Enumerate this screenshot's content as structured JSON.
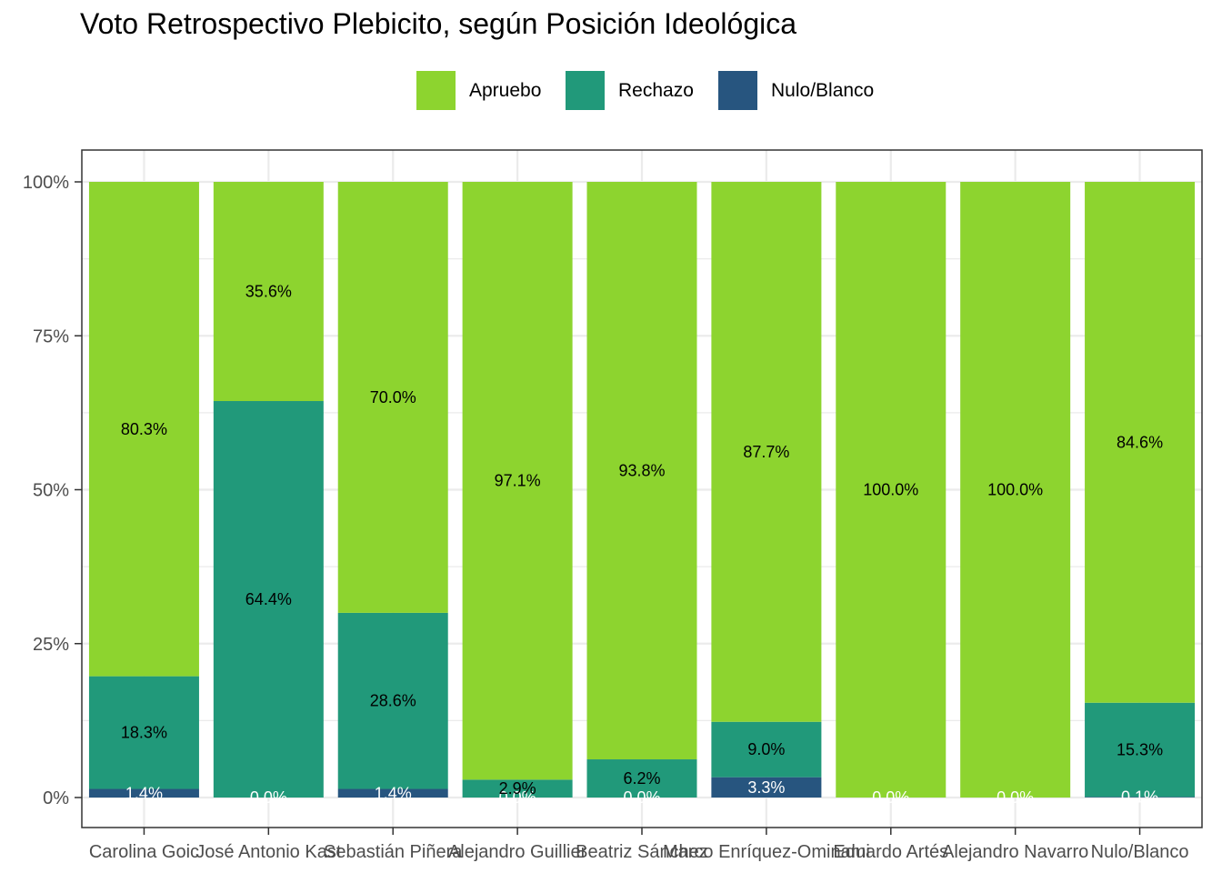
{
  "chart_data": {
    "type": "bar",
    "stacked": true,
    "title": "Voto Retrospectivo Plebicito, según Posición Ideológica",
    "xlabel": "",
    "ylabel": "",
    "ylim": [
      0,
      1
    ],
    "yticks": [
      0,
      0.25,
      0.5,
      0.75,
      1
    ],
    "ytick_labels": [
      "0%",
      "25%",
      "50%",
      "75%",
      "100%"
    ],
    "grid": true,
    "legend_position": "top",
    "categories": [
      "Carolina Goic",
      "José Antonio Kast",
      "Sebastián Piñera",
      "Alejandro Guillier",
      "Beatriz Sánchez",
      "Marco Enríquez-Ominami",
      "Eduardo Artés",
      "Alejandro Navarro",
      "Nulo/Blanco"
    ],
    "series": [
      {
        "name": "Nulo/Blanco",
        "color": "#27557f",
        "values": [
          0.014,
          0.0,
          0.014,
          0.0,
          0.0,
          0.033,
          0.0,
          0.0,
          0.001
        ],
        "labels": [
          "1.4%",
          "0.0%",
          "1.4%",
          "0.0%",
          "0.0%",
          "3.3%",
          "0.0%",
          "0.0%",
          "0.1%"
        ],
        "label_color": "#ffffff"
      },
      {
        "name": "Rechazo",
        "color": "#21997a",
        "values": [
          0.183,
          0.644,
          0.286,
          0.029,
          0.062,
          0.09,
          0.0,
          0.0,
          0.153
        ],
        "labels": [
          "18.3%",
          "64.4%",
          "28.6%",
          "2.9%",
          "6.2%",
          "9.0%",
          "",
          "",
          "15.3%"
        ],
        "label_color": "#000000"
      },
      {
        "name": "Apruebo",
        "color": "#8dd42f",
        "values": [
          0.803,
          0.356,
          0.7,
          0.971,
          0.938,
          0.877,
          1.0,
          1.0,
          0.846
        ],
        "labels": [
          "80.3%",
          "35.6%",
          "70.0%",
          "97.1%",
          "93.8%",
          "87.7%",
          "100.0%",
          "100.0%",
          "84.6%"
        ],
        "label_color": "#000000"
      }
    ],
    "legend": [
      {
        "name": "Apruebo",
        "color": "#8dd42f"
      },
      {
        "name": "Rechazo",
        "color": "#21997a"
      },
      {
        "name": "Nulo/Blanco",
        "color": "#27557f"
      }
    ]
  }
}
